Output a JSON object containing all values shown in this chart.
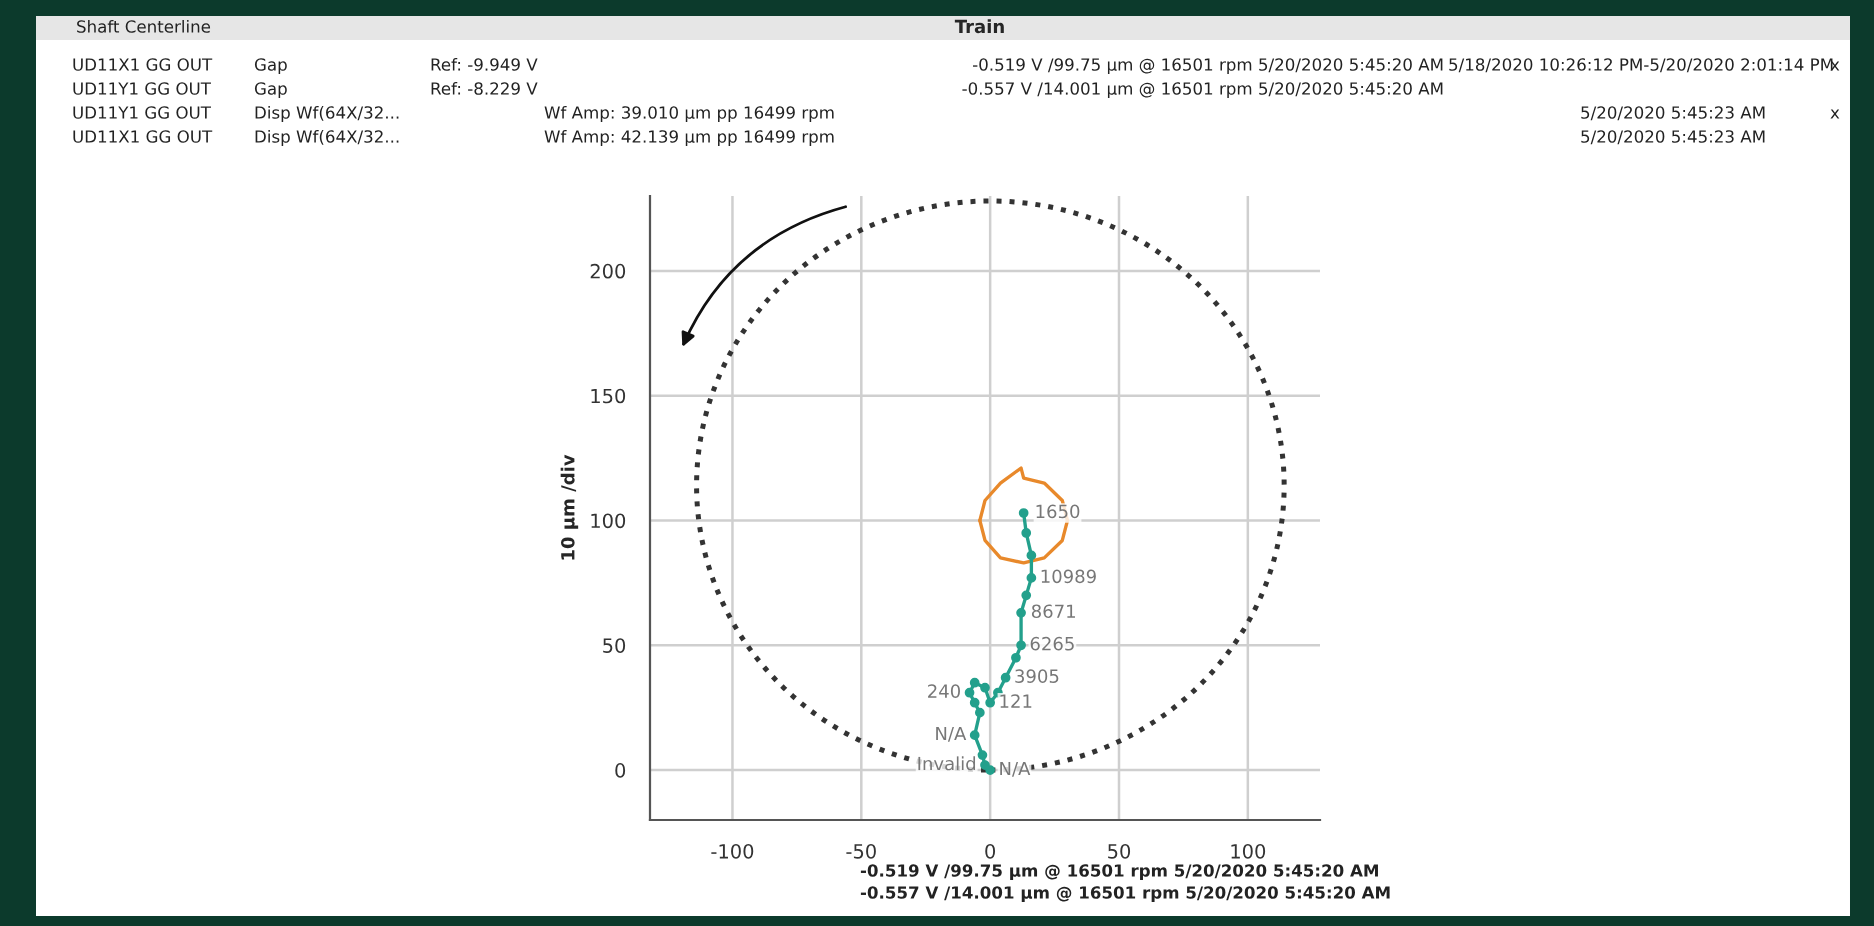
{
  "chart_data": {
    "type": "line",
    "title": "Train",
    "ylabel": "10 µm /div",
    "xlim": [
      -132,
      128
    ],
    "ylim": [
      -20,
      230
    ],
    "xticks": [
      -100,
      -50,
      0,
      50,
      100
    ],
    "yticks": [
      0,
      50,
      100,
      150,
      200
    ],
    "grid": true,
    "series": [
      {
        "color": "#e8892b",
        "line_style": "solid",
        "marker": "none",
        "x": [
          -4,
          -2,
          4,
          12,
          13,
          21,
          28,
          30
        ],
        "values": [
          100,
          108,
          115,
          121,
          117,
          115,
          108,
          100
        ]
      },
      {
        "color": "#e8892b",
        "line_style": "solid",
        "marker": "none",
        "x": [
          -4,
          -2,
          4,
          13,
          21,
          28,
          30
        ],
        "values": [
          100,
          92,
          85,
          83,
          85,
          92,
          100
        ]
      },
      {
        "color": "#23a08c",
        "line_style": "solid",
        "marker": "circle",
        "x": [
          0,
          -2,
          -3,
          -6,
          -4,
          -6,
          -8,
          -6,
          -2,
          0,
          3,
          6,
          10,
          12,
          12,
          14,
          16,
          16,
          14,
          13
        ],
        "values": [
          0,
          2,
          6,
          14,
          23,
          27,
          31,
          35,
          33,
          27,
          31,
          37,
          45,
          50,
          63,
          70,
          77,
          86,
          95,
          103
        ]
      }
    ],
    "annotations": [
      "Shaft Centerline",
      "UD11X1 GG OUT",
      "Gap",
      "Ref: -9.949 V",
      "-0.519 V /99.75 µm @ 16501 rpm 5/20/2020 5:45:20 AM",
      "5/18/2020 10:26:12 PM-5/20/2020 2:01:14 PM",
      "UD11Y1 GG OUT",
      "Gap",
      "Ref: -8.229 V",
      "-0.557 V /14.001 µm @ 16501 rpm 5/20/2020 5:45:20 AM",
      "UD11Y1 GG OUT",
      "Disp Wf(64X/32...",
      "Wf Amp: 39.010 µm pp 16499 rpm",
      "5/20/2020 5:45:23 AM",
      "UD11X1 GG OUT",
      "Disp Wf(64X/32...",
      "Wf Amp: 42.139 µm pp 16499 rpm",
      "5/20/2020 5:45:23 AM",
      "-0.519 V /99.75 µm @ 16501 rpm 5/20/2020 5:45:20 AM",
      "-0.557 V /14.001 µm @ 16501 rpm 5/20/2020 5:45:20 AM",
      "x",
      "x",
      {
        "text": "1650",
        "x": 14,
        "y": 103
      },
      {
        "text": "10989",
        "x": 16,
        "y": 77
      },
      {
        "text": "8671",
        "x": 12.5,
        "y": 63
      },
      {
        "text": "6265",
        "x": 12,
        "y": 50
      },
      {
        "text": "3905",
        "x": 6,
        "y": 37
      },
      {
        "text": "121",
        "x": 0,
        "y": 27
      },
      {
        "text": "240",
        "x": -8,
        "y": 31
      },
      {
        "text": "N/A",
        "x": -6,
        "y": 14
      },
      {
        "text": "N/A",
        "x": 0,
        "y": 0
      },
      {
        "text": "Invalid",
        "x": -2,
        "y": 2
      }
    ]
  }
}
